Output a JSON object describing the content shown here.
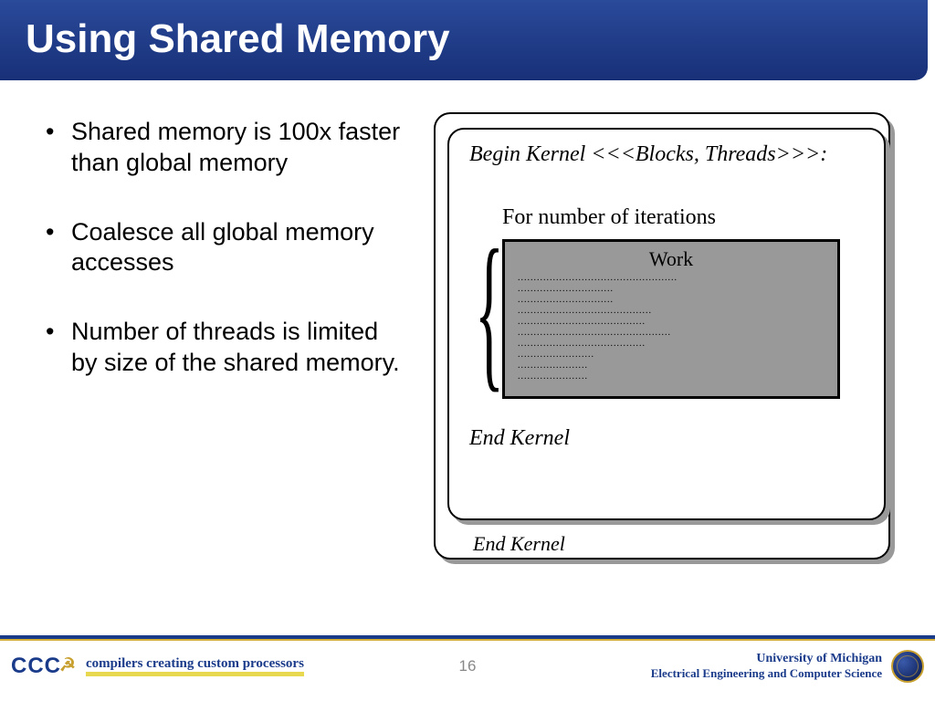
{
  "title": "Using Shared Memory",
  "bullets": {
    "b1": "Shared memory is 100x faster than global memory",
    "b2": "Coalesce all global memory accesses",
    "b3": "Number of threads is limited by size of the shared memory."
  },
  "kernel": {
    "begin": "Begin Kernel <<<Blocks, Threads>>>:",
    "for_label": "For number of iterations",
    "work_title": "Work",
    "dots": "..................................................\n..............................\n..............................\n..........................................\n........................................\n................................................\n........................................\n........................\n......................\n......................",
    "end": "End Kernel",
    "end_back": "End Kernel"
  },
  "footer": {
    "cccp_logo": "CCC",
    "cccp_tag": "compilers creating custom processors",
    "page": "16",
    "uni": "University of Michigan",
    "dept": "Electrical Engineering and Computer Science"
  },
  "colors": {
    "title_bg": "#1a3a8a",
    "work_bg": "#999999",
    "gold": "#c8a030"
  }
}
